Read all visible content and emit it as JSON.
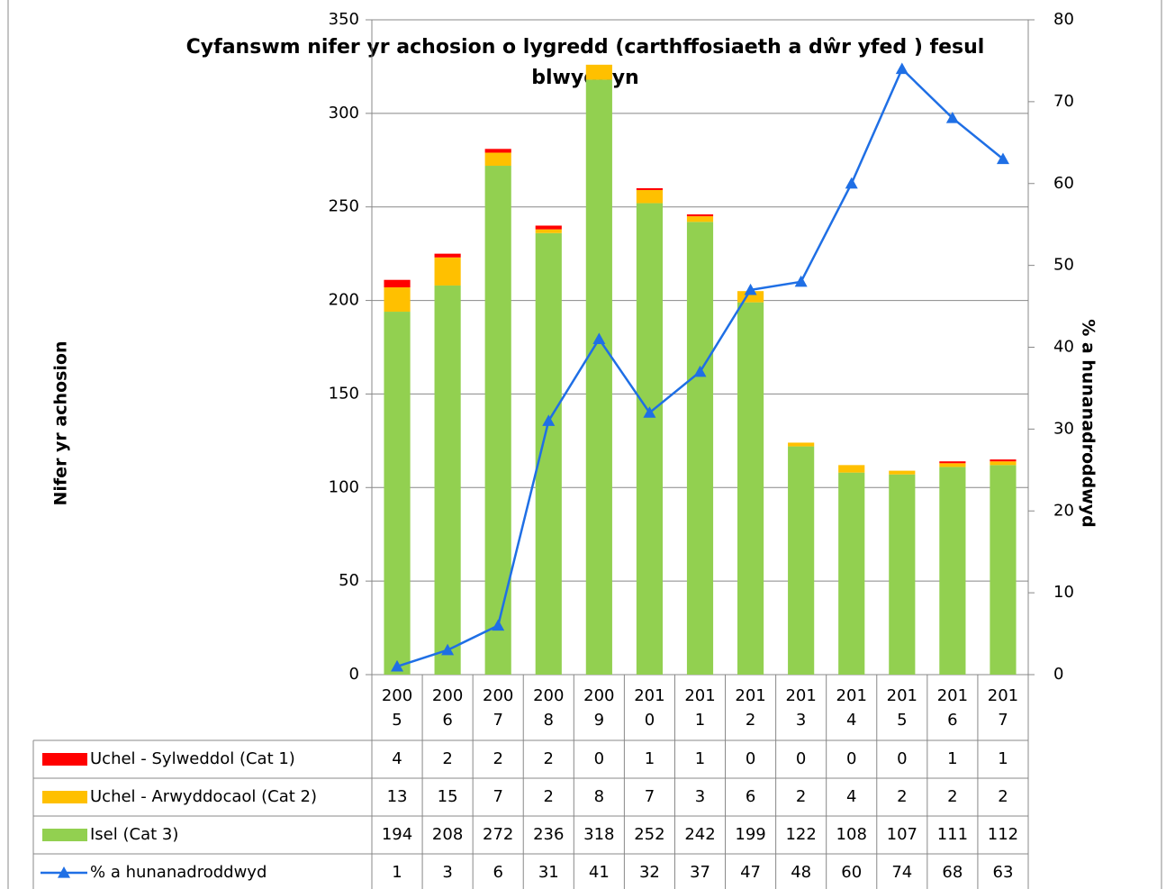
{
  "chart_data": {
    "type": "bar",
    "title": "Cyfanswm nifer yr achosion o lygredd (carthffosiaeth a dŵr yfed ) fesul blwyddyn",
    "ylabel": "Nifer yr achosion",
    "y2label": "% a hunanadroddwyd",
    "categories": [
      "2005",
      "2006",
      "2007",
      "2008",
      "2009",
      "2010",
      "2011",
      "2012",
      "2013",
      "2014",
      "2015",
      "2016",
      "2017"
    ],
    "series": [
      {
        "name": "Uchel - Sylweddol (Cat 1)",
        "color": "#ff0000",
        "type": "bar",
        "values": [
          4,
          2,
          2,
          2,
          0,
          1,
          1,
          0,
          0,
          0,
          0,
          1,
          1
        ]
      },
      {
        "name": "Uchel - Arwyddocaol (Cat 2)",
        "color": "#ffc000",
        "type": "bar",
        "values": [
          13,
          15,
          7,
          2,
          8,
          7,
          3,
          6,
          2,
          4,
          2,
          2,
          2
        ]
      },
      {
        "name": "Isel (Cat 3)",
        "color": "#92d050",
        "type": "bar",
        "values": [
          194,
          208,
          272,
          236,
          318,
          252,
          242,
          199,
          122,
          108,
          107,
          111,
          112
        ]
      },
      {
        "name": "% a hunanadroddwyd",
        "color": "#1f6fe5",
        "type": "line",
        "axis": "y2",
        "values": [
          1,
          3,
          6,
          31,
          41,
          32,
          37,
          47,
          48,
          60,
          74,
          68,
          63
        ]
      }
    ],
    "stacked": true,
    "ylim": [
      0,
      350
    ],
    "yticks": [
      0,
      50,
      100,
      150,
      200,
      250,
      300,
      350
    ],
    "y2lim": [
      0,
      80
    ],
    "y2ticks": [
      0,
      10,
      20,
      30,
      40,
      50,
      60,
      70,
      80
    ],
    "grid": true
  }
}
